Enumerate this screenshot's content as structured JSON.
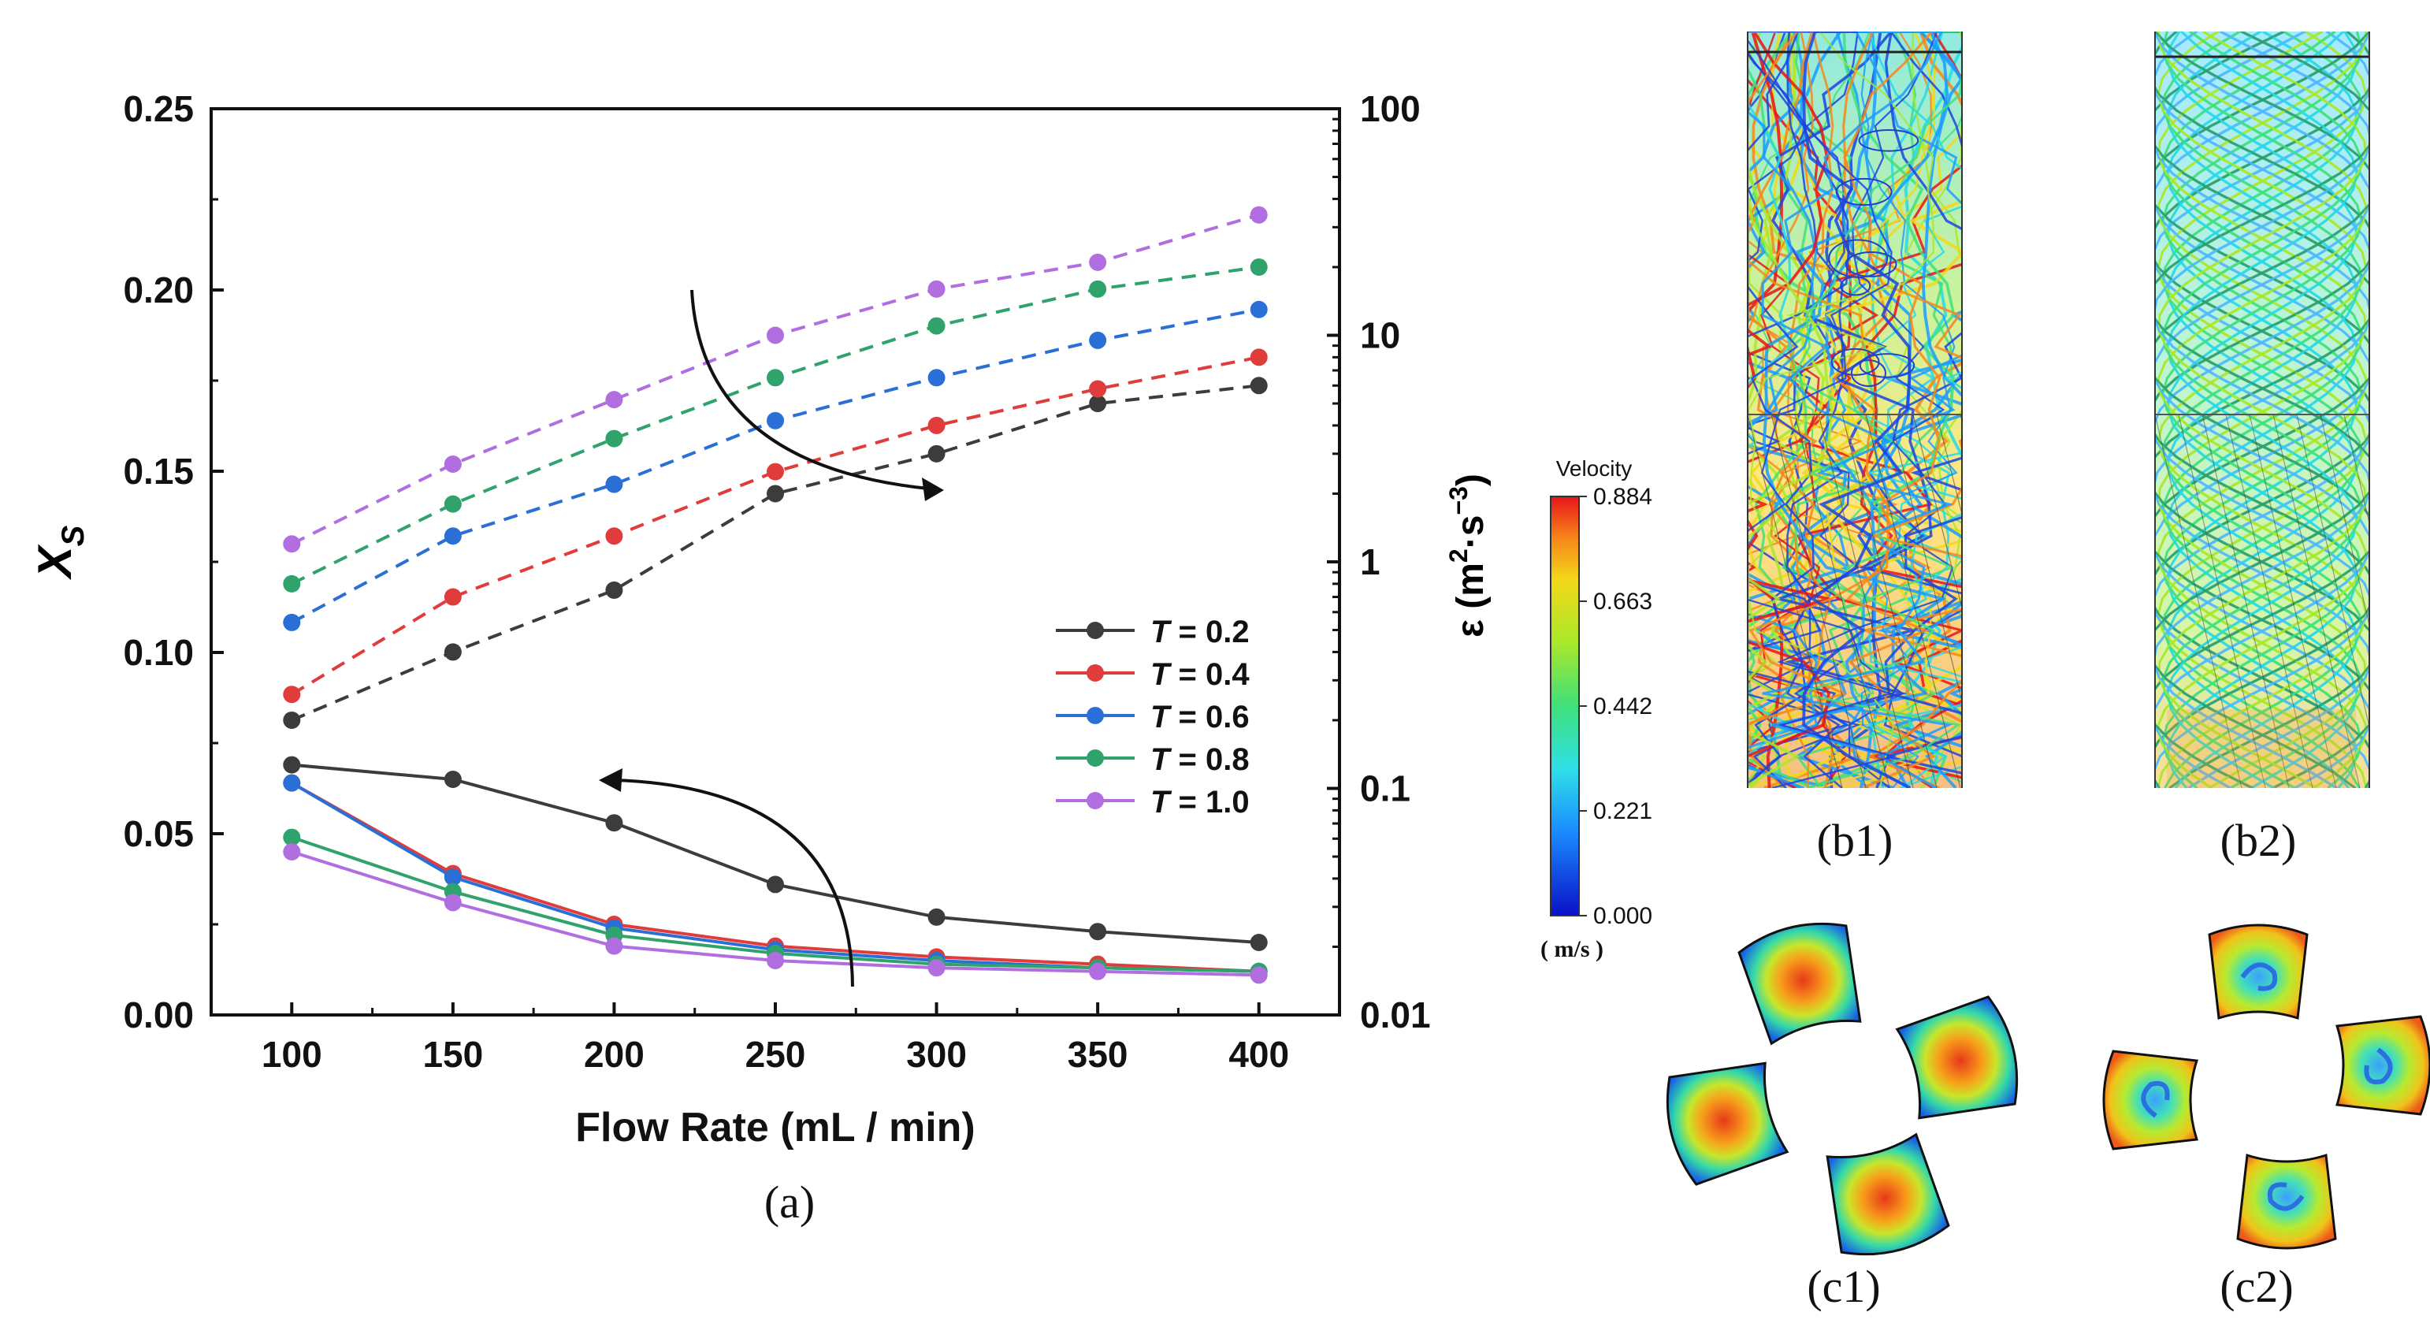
{
  "chart_data": {
    "type": "line",
    "panel_label": "(a)",
    "xlabel": "Flow Rate (mL / min)",
    "ylabel_left": "X",
    "ylabel_left_subscript": "S",
    "ylabel_right_symbol": "ε",
    "ylabel_right_units": [
      "(m",
      "2",
      "·s",
      "−3",
      ")"
    ],
    "x": [
      100,
      150,
      200,
      250,
      300,
      350,
      400
    ],
    "xticks": [
      "100",
      "150",
      "200",
      "250",
      "300",
      "350",
      "400"
    ],
    "xlim": [
      75,
      425
    ],
    "ylim_left": [
      0,
      0.25
    ],
    "yticks_left": [
      "0.00",
      "0.05",
      "0.10",
      "0.15",
      "0.20",
      "0.25"
    ],
    "ylim_right": [
      0.01,
      100
    ],
    "yscale_right": "log",
    "yticks_right": [
      "0.01",
      "0.1",
      "1",
      "10",
      "100"
    ],
    "legend_var": "T",
    "series": [
      {
        "name": "= 0.2",
        "color": "#3c3c3c",
        "xs_values": [
          0.069,
          0.065,
          0.053,
          0.036,
          0.027,
          0.023,
          0.02
        ],
        "epsilon_values": [
          0.2,
          0.4,
          0.75,
          2.0,
          3.0,
          5.0,
          6.0
        ]
      },
      {
        "name": "= 0.4",
        "color": "#e03c3c",
        "xs_values": [
          0.064,
          0.039,
          0.025,
          0.019,
          0.016,
          0.014,
          0.012
        ],
        "epsilon_values": [
          0.26,
          0.7,
          1.3,
          2.5,
          4.0,
          5.8,
          8.0
        ]
      },
      {
        "name": "= 0.6",
        "color": "#2a6fd6",
        "xs_values": [
          0.064,
          0.038,
          0.024,
          0.018,
          0.015,
          0.013,
          0.012
        ],
        "epsilon_values": [
          0.54,
          1.3,
          2.2,
          4.2,
          6.5,
          9.5,
          13.0
        ]
      },
      {
        "name": "= 0.8",
        "color": "#2fa36b",
        "xs_values": [
          0.049,
          0.034,
          0.022,
          0.017,
          0.014,
          0.013,
          0.012
        ],
        "epsilon_values": [
          0.8,
          1.8,
          3.5,
          6.5,
          11.0,
          16.0,
          20.0
        ]
      },
      {
        "name": "= 1.0",
        "color": "#b06ee0",
        "xs_values": [
          0.045,
          0.031,
          0.019,
          0.015,
          0.013,
          0.012,
          0.011
        ],
        "epsilon_values": [
          1.2,
          2.7,
          5.2,
          10.0,
          16.0,
          21.0,
          34.0
        ]
      }
    ]
  },
  "colorbar": {
    "title": "Velocity",
    "ticks": [
      "0.884",
      "0.663",
      "0.442",
      "0.221",
      "0.000"
    ],
    "units": "( m/s )"
  },
  "panel_labels": {
    "b1": "(b1)",
    "b2": "(b2)",
    "c1": "(c1)",
    "c2": "(c2)"
  },
  "colors": {
    "jet": [
      "#00008f",
      "#0000ff",
      "#0070ff",
      "#00dfff",
      "#4fffaf",
      "#bfff3f",
      "#ffdf00",
      "#ff7000",
      "#ff0000",
      "#8f0000"
    ]
  }
}
